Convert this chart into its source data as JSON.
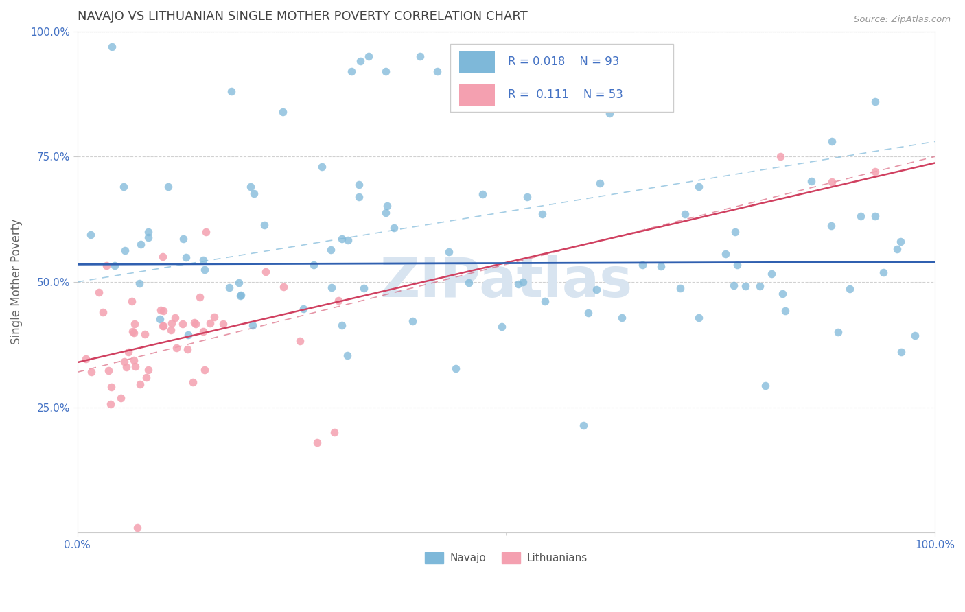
{
  "title": "NAVAJO VS LITHUANIAN SINGLE MOTHER POVERTY CORRELATION CHART",
  "source_text": "Source: ZipAtlas.com",
  "ylabel": "Single Mother Poverty",
  "xlim": [
    0.0,
    1.0
  ],
  "ylim": [
    0.0,
    1.0
  ],
  "navajo_color": "#7eb8d9",
  "lithuanian_color": "#f4a0b0",
  "navajo_R": 0.018,
  "navajo_N": 93,
  "lithuanian_R": 0.111,
  "lithuanian_N": 53,
  "watermark": "ZIPatlas",
  "legend_label_navajo": "Navajo",
  "legend_label_lithuanian": "Lithuanians",
  "background_color": "#ffffff",
  "grid_color": "#cccccc",
  "title_color": "#444444",
  "axis_label_color": "#666666",
  "tick_label_color": "#4472c4",
  "watermark_color": "#d8e4f0",
  "navajo_line_color": "#3060b0",
  "navajo_dash_color": "#7eb8d9",
  "lithuanian_line_color": "#d04060",
  "lithuanian_dash_color": "#d04060",
  "legend_text_color": "#4472c4",
  "legend_box_color": "#cccccc"
}
